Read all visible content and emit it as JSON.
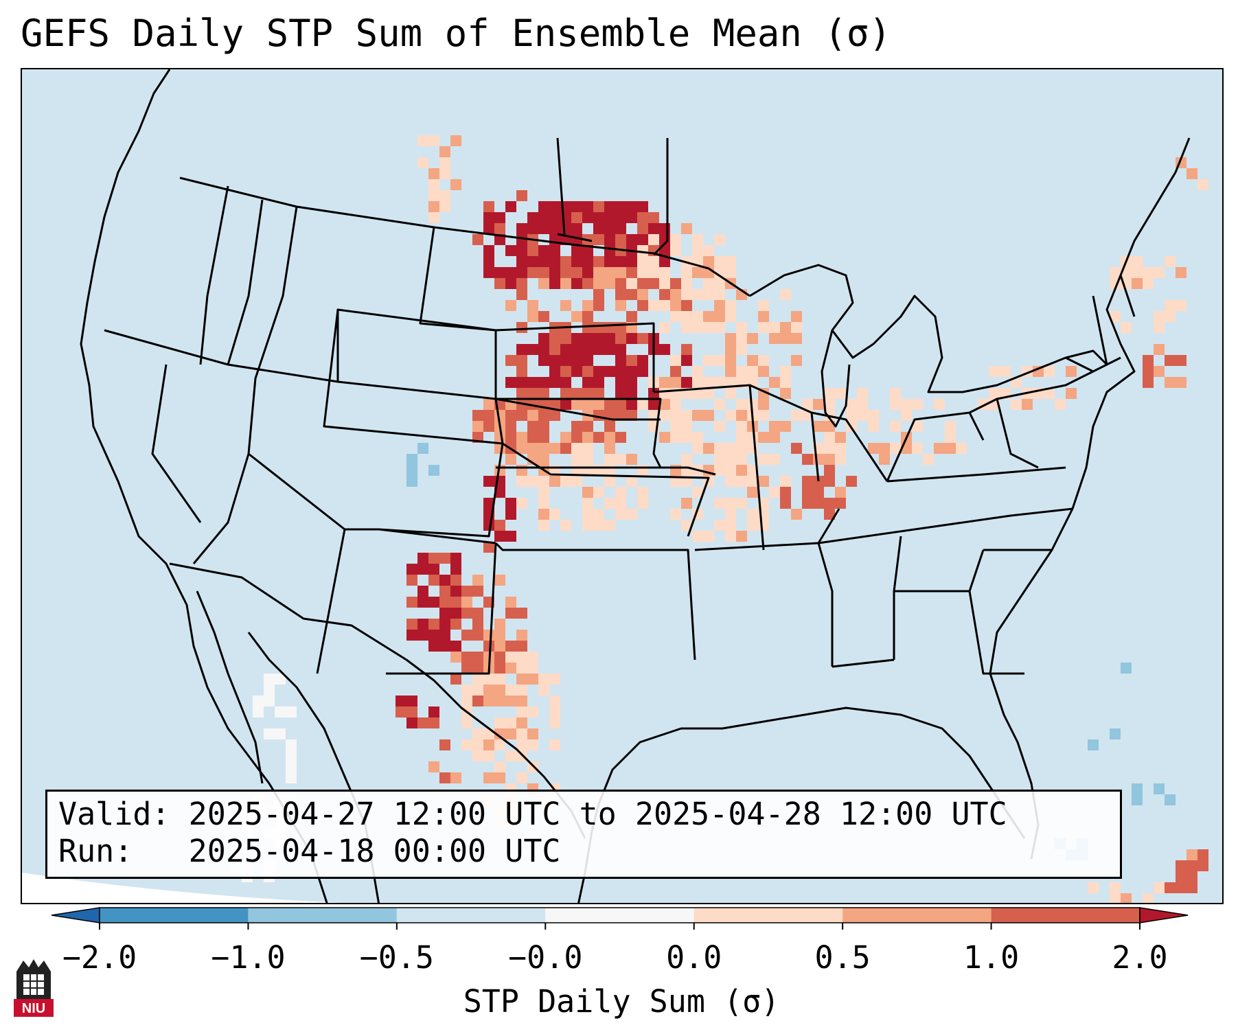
{
  "title": "GEFS Daily STP Sum of Ensemble Mean (σ)",
  "info": {
    "valid_label": "Valid:",
    "valid_value": "2025-04-27 12:00 UTC to 2025-04-28 12:00 UTC",
    "run_label": "Run:",
    "run_value": "2025-04-18 00:00 UTC"
  },
  "colorbar": {
    "label": "STP Daily Sum (σ)",
    "ticks": [
      "−2.0",
      "−1.0",
      "−0.5",
      "−0.0",
      "0.0",
      "0.5",
      "1.0",
      "2.0"
    ],
    "colors": [
      "#2166ac",
      "#4393c3",
      "#92c5de",
      "#d1e5f0",
      "#f7f7f7",
      "#fddbc7",
      "#f4a582",
      "#d6604d",
      "#b2182b"
    ],
    "extend": "both"
  },
  "map": {
    "projection": "Lambert conformal (CONUS)",
    "ocean_land_fill": "#d1e5f0",
    "features": [
      "coastlines",
      "state borders",
      "country borders"
    ],
    "highlights": [
      {
        "region": "Northern Plains (Dakotas)",
        "category": "2.0"
      },
      {
        "region": "Nebraska / western Kansas",
        "category": "2.0"
      },
      {
        "region": "Eastern New Mexico / West Texas",
        "category": "2.0"
      },
      {
        "region": "Upper Midwest (Minnesota, Wisconsin, Iowa)",
        "category": "0.5-1.0"
      },
      {
        "region": "Illinois / Indiana / Ohio",
        "category": "0.0-1.0"
      },
      {
        "region": "New York / New England",
        "category": "0.0-1.0"
      }
    ]
  },
  "logo": {
    "text": "NIU"
  }
}
